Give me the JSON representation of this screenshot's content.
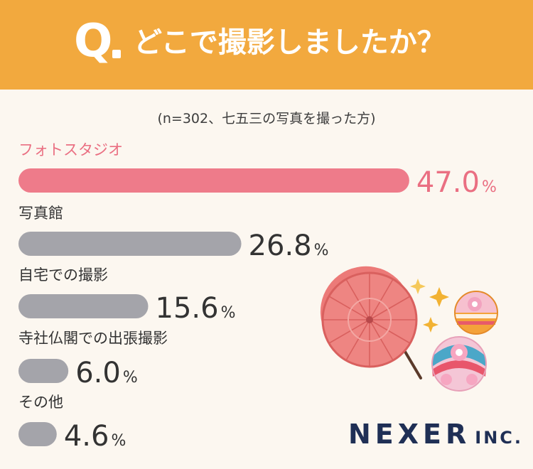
{
  "header": {
    "q_mark": "Q",
    "question": "どこで撮影しましたか？"
  },
  "note": "(n=302、七五三の写真を撮った方)",
  "chart_data": {
    "type": "bar",
    "orientation": "horizontal",
    "categories": [
      "フォトスタジオ",
      "写真館",
      "自宅での撮影",
      "寺社仏閣での出張撮影",
      "その他"
    ],
    "values": [
      47.0,
      26.8,
      15.6,
      6.0,
      4.6
    ],
    "value_labels": [
      "47.0",
      "26.8",
      "15.6",
      "6.0",
      "4.6"
    ],
    "unit": "%",
    "highlight_color": "#ee7b8a",
    "bar_color": "#a4a4aa",
    "highlight_label_color": "#ea6f82",
    "label_color": "#333333",
    "grid": false
  },
  "logo": {
    "name": "NEXER",
    "suffix": "INC."
  },
  "decorations": [
    "parasol-illustration",
    "temari-ball-illustration",
    "sparkle-icon"
  ]
}
